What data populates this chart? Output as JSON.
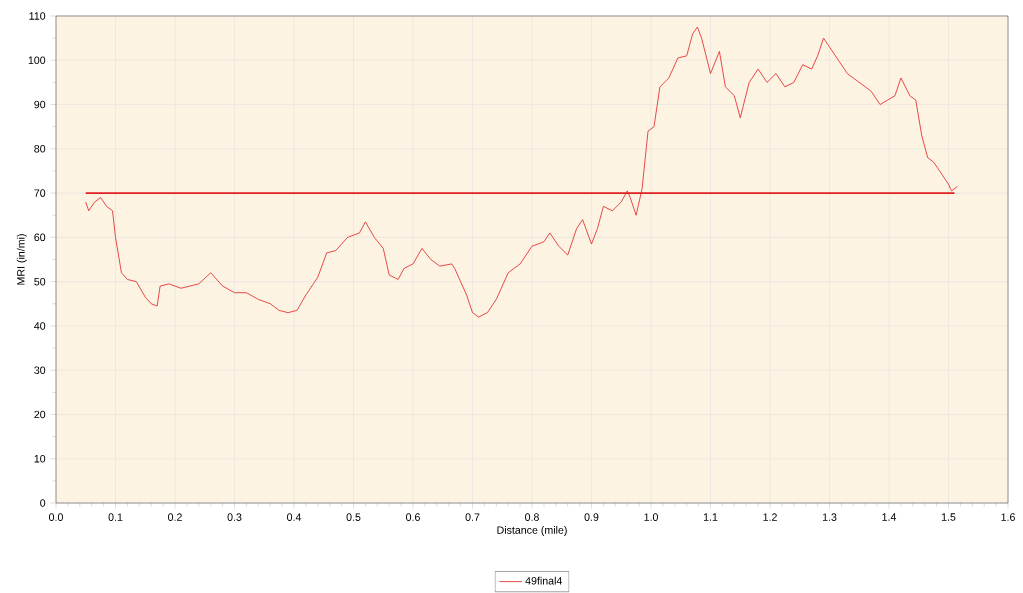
{
  "chart_data": {
    "type": "line",
    "xlabel": "Distance (mile)",
    "ylabel": "MRI (in/mi)",
    "xlim": [
      0,
      1.6
    ],
    "ylim": [
      0,
      110
    ],
    "xticks": [
      {
        "value": 0,
        "label": "0.0"
      },
      {
        "value": 0.1,
        "label": "0.1"
      },
      {
        "value": 0.2,
        "label": "0.2"
      },
      {
        "value": 0.3,
        "label": "0.3"
      },
      {
        "value": 0.4,
        "label": "0.4"
      },
      {
        "value": 0.5,
        "label": "0.5"
      },
      {
        "value": 0.6,
        "label": "0.6"
      },
      {
        "value": 0.7,
        "label": "0.7"
      },
      {
        "value": 0.8,
        "label": "0.8"
      },
      {
        "value": 0.9,
        "label": "0.9"
      },
      {
        "value": 1,
        "label": "1.0"
      },
      {
        "value": 1.1,
        "label": "1.1"
      },
      {
        "value": 1.2,
        "label": "1.2"
      },
      {
        "value": 1.3,
        "label": "1.3"
      },
      {
        "value": 1.4,
        "label": "1.4"
      },
      {
        "value": 1.5,
        "label": "1.5"
      },
      {
        "value": 1.6,
        "label": "1.6"
      }
    ],
    "yticks": [
      0,
      10,
      20,
      30,
      40,
      50,
      60,
      70,
      80,
      90,
      100,
      110
    ],
    "grid": true,
    "legend": "bottom",
    "marker": "none",
    "line_style": "solid",
    "series": [
      {
        "name": "49final4",
        "color": "#e02020",
        "x": [
          0.05,
          0.055,
          0.065,
          0.075,
          0.085,
          0.095,
          0.1,
          0.11,
          0.12,
          0.135,
          0.15,
          0.16,
          0.17,
          0.175,
          0.19,
          0.21,
          0.24,
          0.26,
          0.28,
          0.3,
          0.32,
          0.34,
          0.36,
          0.375,
          0.39,
          0.405,
          0.42,
          0.44,
          0.455,
          0.47,
          0.49,
          0.51,
          0.52,
          0.535,
          0.55,
          0.56,
          0.575,
          0.585,
          0.6,
          0.615,
          0.63,
          0.645,
          0.665,
          0.67,
          0.68,
          0.69,
          0.7,
          0.71,
          0.725,
          0.74,
          0.76,
          0.78,
          0.8,
          0.82,
          0.83,
          0.845,
          0.86,
          0.875,
          0.885,
          0.9,
          0.91,
          0.92,
          0.935,
          0.95,
          0.96,
          0.965,
          0.975,
          0.985,
          0.995,
          1.005,
          1.015,
          1.03,
          1.045,
          1.06,
          1.07,
          1.078,
          1.085,
          1.1,
          1.115,
          1.125,
          1.14,
          1.15,
          1.165,
          1.18,
          1.195,
          1.21,
          1.225,
          1.24,
          1.255,
          1.27,
          1.28,
          1.29,
          1.3,
          1.315,
          1.33,
          1.35,
          1.37,
          1.385,
          1.41,
          1.42,
          1.435,
          1.445,
          1.455,
          1.465,
          1.475,
          1.49,
          1.5,
          1.505,
          1.515
        ],
        "values": [
          68,
          66,
          68,
          69,
          67,
          66,
          60,
          52,
          50.5,
          50,
          46.5,
          45,
          44.5,
          49,
          49.5,
          48.5,
          49.5,
          52,
          49,
          47.5,
          47.5,
          46,
          45,
          43.5,
          43,
          43.5,
          47,
          51,
          56.5,
          57,
          60,
          61,
          63.5,
          60,
          57.5,
          51.5,
          50.5,
          53,
          54,
          57.5,
          55,
          53.5,
          54,
          53,
          50,
          47,
          43,
          42,
          43,
          46,
          52,
          54,
          58,
          59,
          61,
          58,
          56,
          62,
          64,
          58.5,
          62,
          67,
          66,
          68,
          70.5,
          69,
          65,
          71,
          84,
          85,
          94,
          96,
          100.5,
          101,
          106,
          107.5,
          105,
          97,
          102,
          94,
          92,
          87,
          95,
          98,
          95,
          97,
          94,
          95,
          99,
          98,
          101,
          105,
          103,
          100,
          97,
          95,
          93,
          90,
          92,
          96,
          92,
          91,
          83,
          78,
          77,
          74,
          72,
          70.5,
          71.5
        ]
      },
      {
        "type": "line",
        "color": "#e02020",
        "x": [
          0.05,
          1.51
        ],
        "values": [
          70,
          70
        ]
      }
    ]
  }
}
